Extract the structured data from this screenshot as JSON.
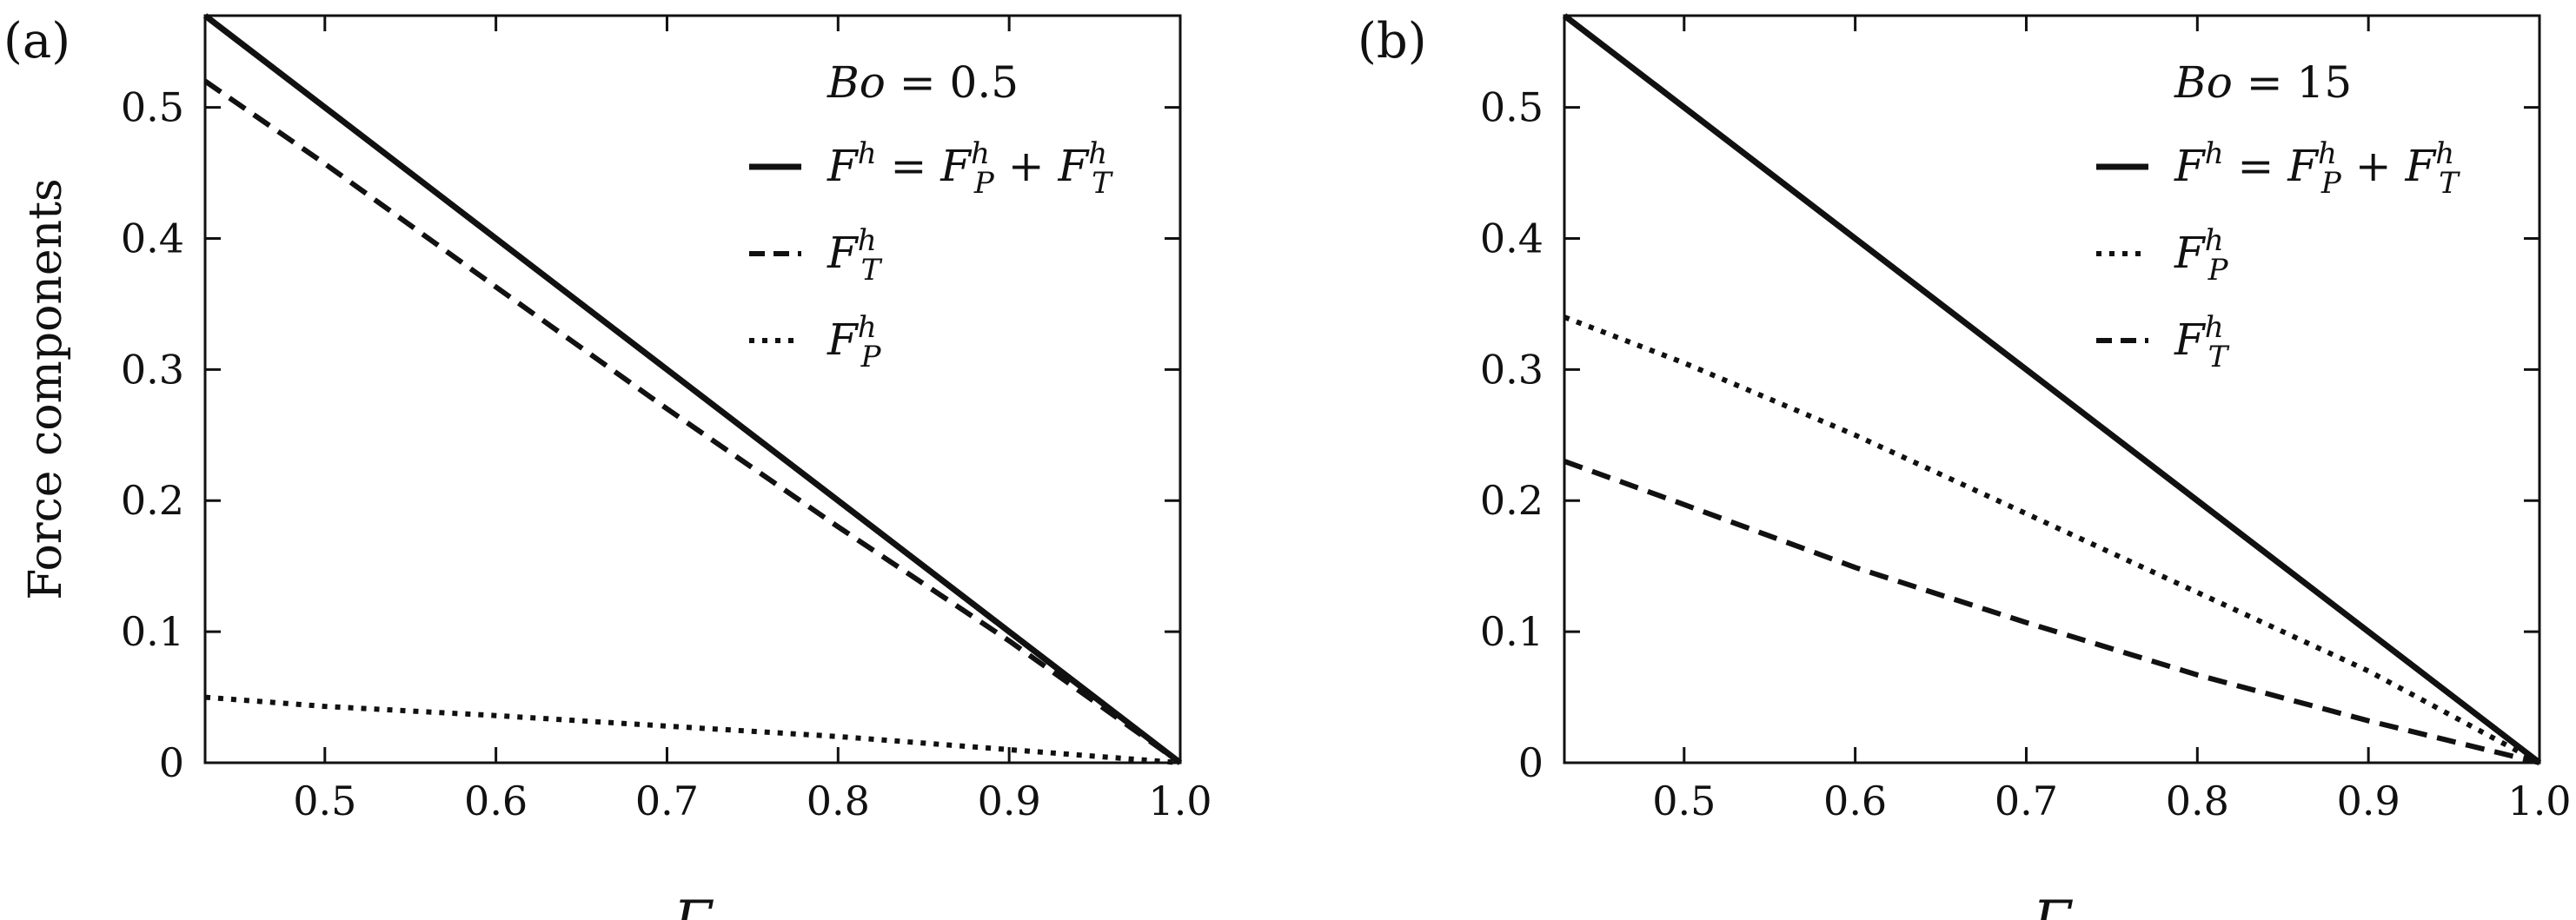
{
  "chart_data": [
    {
      "panel_label": "(a)",
      "type": "line",
      "ylabel": "Force components",
      "xlabel": "Γ",
      "xlim": [
        0.43,
        1.0
      ],
      "ylim": [
        0,
        0.57
      ],
      "xticks": [
        "0.5",
        "0.6",
        "0.7",
        "0.8",
        "0.9",
        "1.0"
      ],
      "yticks": [
        "0",
        "0.1",
        "0.2",
        "0.3",
        "0.4",
        "0.5"
      ],
      "grid": false,
      "legend_position": "top-right",
      "parameter": {
        "symbol": "Bo",
        "value": "0.5"
      },
      "series": [
        {
          "key": "total",
          "style": "solid",
          "legend": {
            "main": "F",
            "sup": "h",
            "eq": " = ",
            "t1": "F",
            "t1sub": "P",
            "t1sup": "h",
            "plus": " + ",
            "t2": "F",
            "t2sub": "T",
            "t2sup": "h"
          },
          "x": [
            0.43,
            0.5,
            0.6,
            0.7,
            0.8,
            0.9,
            1.0
          ],
          "y": [
            0.57,
            0.5,
            0.4,
            0.3,
            0.2,
            0.1,
            0.0
          ]
        },
        {
          "key": "FT",
          "style": "dashed",
          "legend": {
            "main": "F",
            "sub": "T",
            "sup": "h"
          },
          "x": [
            0.43,
            0.5,
            0.6,
            0.7,
            0.8,
            0.9,
            1.0
          ],
          "y": [
            0.52,
            0.457,
            0.363,
            0.27,
            0.18,
            0.093,
            0.0
          ]
        },
        {
          "key": "FP",
          "style": "dotted",
          "legend": {
            "main": "F",
            "sub": "P",
            "sup": "h"
          },
          "x": [
            0.43,
            0.5,
            0.6,
            0.7,
            0.8,
            0.9,
            1.0
          ],
          "y": [
            0.05,
            0.043,
            0.036,
            0.028,
            0.02,
            0.01,
            0.0
          ]
        }
      ]
    },
    {
      "panel_label": "(b)",
      "type": "line",
      "ylabel": "",
      "xlabel": "Γ",
      "xlim": [
        0.43,
        1.0
      ],
      "ylim": [
        0,
        0.57
      ],
      "xticks": [
        "0.5",
        "0.6",
        "0.7",
        "0.8",
        "0.9",
        "1.0"
      ],
      "yticks": [
        "0",
        "0.1",
        "0.2",
        "0.3",
        "0.4",
        "0.5"
      ],
      "grid": false,
      "legend_position": "top-right",
      "parameter": {
        "symbol": "Bo",
        "value": "15"
      },
      "series": [
        {
          "key": "total",
          "style": "solid",
          "legend": {
            "main": "F",
            "sup": "h",
            "eq": " = ",
            "t1": "F",
            "t1sub": "P",
            "t1sup": "h",
            "plus": " + ",
            "t2": "F",
            "t2sub": "T",
            "t2sup": "h"
          },
          "x": [
            0.43,
            0.5,
            0.6,
            0.7,
            0.8,
            0.9,
            1.0
          ],
          "y": [
            0.57,
            0.5,
            0.4,
            0.3,
            0.2,
            0.1,
            0.0
          ]
        },
        {
          "key": "FP",
          "style": "dotted",
          "legend": {
            "main": "F",
            "sub": "P",
            "sup": "h"
          },
          "x": [
            0.43,
            0.5,
            0.6,
            0.7,
            0.8,
            0.9,
            1.0
          ],
          "y": [
            0.34,
            0.305,
            0.25,
            0.19,
            0.13,
            0.07,
            0.0
          ]
        },
        {
          "key": "FT",
          "style": "dashed",
          "legend": {
            "main": "F",
            "sub": "T",
            "sup": "h"
          },
          "x": [
            0.43,
            0.5,
            0.6,
            0.7,
            0.8,
            0.9,
            1.0
          ],
          "y": [
            0.23,
            0.197,
            0.149,
            0.107,
            0.067,
            0.032,
            0.0
          ]
        }
      ]
    }
  ]
}
